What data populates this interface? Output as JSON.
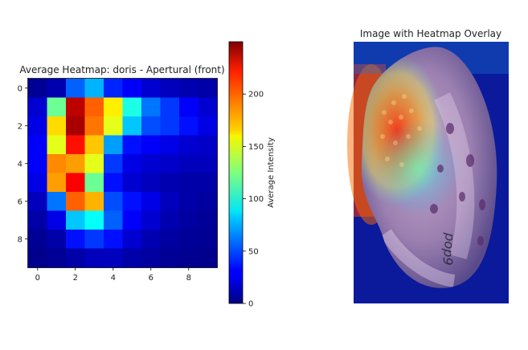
{
  "chart_data": [
    {
      "type": "heatmap",
      "title": "Average Heatmap: doris - Apertural (front)",
      "colorbar_label": "Average Intensity",
      "colormap": "jet",
      "vmin": 0,
      "vmax": 250,
      "colorbar_ticks": [
        0,
        50,
        100,
        150,
        200
      ],
      "xticks": [
        0,
        2,
        4,
        6,
        8
      ],
      "yticks": [
        0,
        2,
        4,
        6,
        8
      ],
      "grid": "off",
      "matrix": [
        [
          5,
          12,
          55,
          75,
          40,
          30,
          20,
          15,
          12,
          10
        ],
        [
          20,
          120,
          235,
          195,
          160,
          100,
          60,
          45,
          30,
          20
        ],
        [
          25,
          165,
          240,
          190,
          150,
          80,
          50,
          45,
          35,
          25
        ],
        [
          30,
          150,
          215,
          170,
          70,
          35,
          30,
          25,
          20,
          18
        ],
        [
          30,
          185,
          180,
          150,
          45,
          25,
          20,
          18,
          15,
          15
        ],
        [
          25,
          180,
          220,
          120,
          35,
          20,
          15,
          12,
          10,
          10
        ],
        [
          15,
          60,
          195,
          175,
          50,
          35,
          25,
          15,
          10,
          8
        ],
        [
          10,
          25,
          80,
          95,
          55,
          30,
          20,
          12,
          8,
          6
        ],
        [
          5,
          10,
          35,
          45,
          35,
          20,
          12,
          8,
          6,
          5
        ],
        [
          3,
          5,
          10,
          15,
          15,
          10,
          8,
          5,
          4,
          3
        ]
      ]
    },
    {
      "type": "image",
      "title": "Image with Heatmap Overlay",
      "image_text": "pop9"
    }
  ]
}
